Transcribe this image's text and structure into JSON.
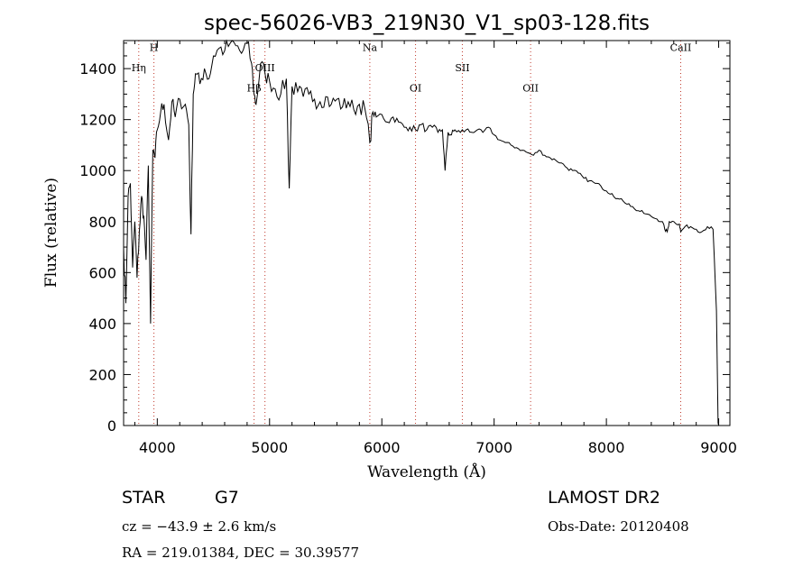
{
  "chart_data": {
    "type": "line",
    "title": "spec-56026-VB3_219N30_V1_sp03-128.fits",
    "xlabel": "Wavelength (Å)",
    "ylabel": "Flux (relative)",
    "xlim": [
      3700,
      9100
    ],
    "ylim": [
      0,
      1510
    ],
    "xticks": [
      4000,
      5000,
      6000,
      7000,
      8000,
      9000
    ],
    "yticks": [
      0,
      200,
      400,
      600,
      800,
      1000,
      1200,
      1400
    ],
    "grid": false,
    "series": [
      {
        "color": "#000000",
        "x": [
          3700,
          3720,
          3740,
          3760,
          3780,
          3800,
          3820,
          3840,
          3860,
          3880,
          3900,
          3920,
          3940,
          3960,
          3980,
          4000,
          4030,
          4060,
          4100,
          4130,
          4160,
          4200,
          4250,
          4280,
          4300,
          4320,
          4340,
          4380,
          4420,
          4460,
          4500,
          4550,
          4600,
          4650,
          4700,
          4750,
          4800,
          4840,
          4862,
          4880,
          4920,
          4960,
          5000,
          5050,
          5100,
          5150,
          5175,
          5200,
          5250,
          5300,
          5350,
          5400,
          5450,
          5500,
          5550,
          5600,
          5650,
          5700,
          5750,
          5800,
          5850,
          5893,
          5920,
          5950,
          6000,
          6050,
          6100,
          6150,
          6200,
          6250,
          6300,
          6350,
          6400,
          6450,
          6500,
          6540,
          6563,
          6590,
          6620,
          6650,
          6700,
          6750,
          6800,
          6850,
          6900,
          6950,
          7000,
          7050,
          7100,
          7150,
          7200,
          7250,
          7300,
          7350,
          7400,
          7450,
          7500,
          7550,
          7600,
          7650,
          7700,
          7750,
          7800,
          7850,
          7900,
          7950,
          8000,
          8050,
          8100,
          8150,
          8200,
          8250,
          8300,
          8350,
          8400,
          8450,
          8498,
          8520,
          8542,
          8560,
          8600,
          8650,
          8662,
          8700,
          8750,
          8800,
          8850,
          8900,
          8950,
          8980,
          8995,
          9000
        ],
        "values": [
          700,
          480,
          900,
          950,
          620,
          800,
          580,
          760,
          900,
          820,
          650,
          1020,
          400,
          1080,
          1050,
          1160,
          1230,
          1260,
          1120,
          1270,
          1210,
          1280,
          1260,
          1180,
          750,
          1300,
          1380,
          1340,
          1400,
          1360,
          1450,
          1480,
          1470,
          1500,
          1490,
          1460,
          1500,
          1420,
          1300,
          1260,
          1420,
          1380,
          1350,
          1320,
          1300,
          1360,
          930,
          1330,
          1310,
          1290,
          1300,
          1280,
          1270,
          1290,
          1260,
          1280,
          1250,
          1270,
          1240,
          1260,
          1240,
          1110,
          1230,
          1210,
          1220,
          1190,
          1210,
          1190,
          1170,
          1170,
          1160,
          1180,
          1160,
          1170,
          1150,
          1160,
          1000,
          1150,
          1140,
          1160,
          1150,
          1160,
          1150,
          1160,
          1150,
          1170,
          1140,
          1120,
          1110,
          1100,
          1090,
          1080,
          1070,
          1060,
          1080,
          1060,
          1050,
          1040,
          1030,
          1010,
          1000,
          990,
          970,
          960,
          950,
          940,
          920,
          910,
          890,
          880,
          870,
          850,
          840,
          830,
          820,
          810,
          800,
          770,
          760,
          800,
          800,
          790,
          760,
          780,
          780,
          770,
          760,
          780,
          770,
          450,
          10,
          0
        ]
      }
    ],
    "annotations": [
      {
        "label": "Hη",
        "x": 3835,
        "label_y": 1390
      },
      {
        "label": "H",
        "x": 3970,
        "label_y": 1470
      },
      {
        "label": "Hβ",
        "x": 4862,
        "label_y": 1310
      },
      {
        "label": "OIII",
        "x": 4959,
        "label_y": 1390
      },
      {
        "label": "Na",
        "x": 5893,
        "label_y": 1470
      },
      {
        "label": "OI",
        "x": 6300,
        "label_y": 1310
      },
      {
        "label": "SII",
        "x": 6717,
        "label_y": 1390
      },
      {
        "label": "OII",
        "x": 7325,
        "label_y": 1310
      },
      {
        "label": "CaII",
        "x": 8662,
        "label_y": 1470
      }
    ]
  },
  "info": {
    "object_type": "STAR",
    "subclass": "G7",
    "survey": "LAMOST DR2",
    "cz": "cz = −43.9 ± 2.6 km/s",
    "obs_date": "Obs-Date: 20120408",
    "coords": "RA = 219.01384, DEC =  30.39577"
  }
}
